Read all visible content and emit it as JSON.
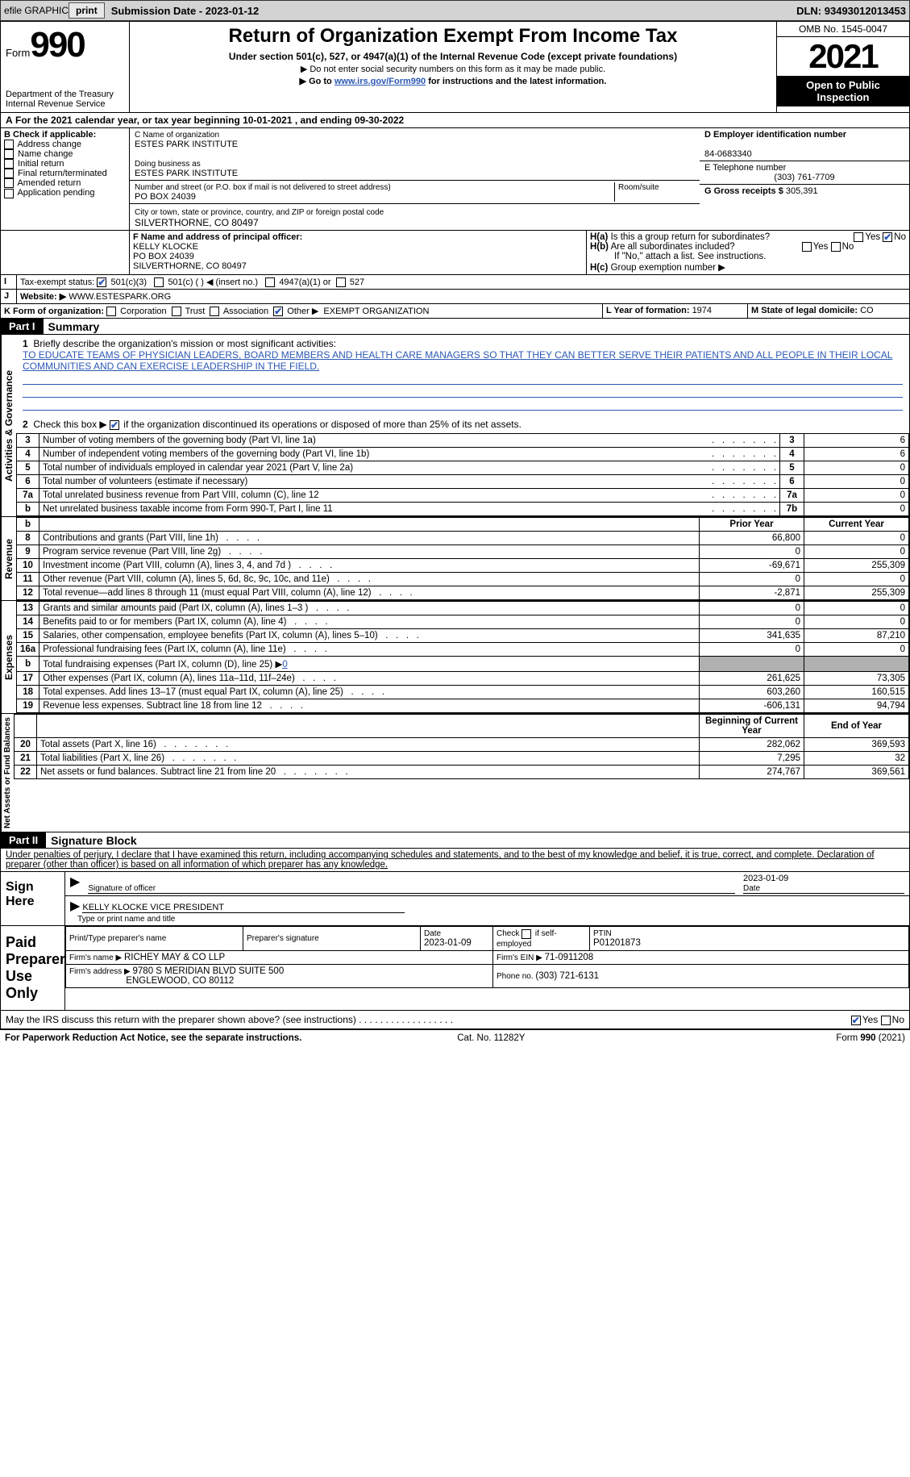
{
  "topbar": {
    "efile": "efile GRAPHIC",
    "print": "print",
    "subdate_label": "Submission Date - ",
    "subdate": "2023-01-12",
    "dln_label": "DLN: ",
    "dln": "93493012013453"
  },
  "header": {
    "form_label": "Form",
    "form_number": "990",
    "dept": "Department of the Treasury",
    "irs": "Internal Revenue Service",
    "title": "Return of Organization Exempt From Income Tax",
    "subtitle": "Under section 501(c), 527, or 4947(a)(1) of the Internal Revenue Code (except private foundations)",
    "note1": "▶ Do not enter social security numbers on this form as it may be made public.",
    "note2_prefix": "▶ Go to ",
    "note2_link": "www.irs.gov/Form990",
    "note2_suffix": " for instructions and the latest information.",
    "omb": "OMB No. 1545-0047",
    "year": "2021",
    "inspect": "Open to Public Inspection"
  },
  "line_a": "For the 2021 calendar year, or tax year beginning 10-01-2021   , and ending 09-30-2022",
  "section_b": {
    "title": "B Check if applicable:",
    "items": [
      "Address change",
      "Name change",
      "Initial return",
      "Final return/terminated",
      "Amended return",
      "Application pending"
    ]
  },
  "section_c": {
    "name_label": "C Name of organization",
    "name": "ESTES PARK INSTITUTE",
    "dba_label": "Doing business as",
    "dba": "ESTES PARK INSTITUTE",
    "street_label": "Number and street (or P.O. box if mail is not delivered to street address)",
    "street": "PO BOX 24039",
    "room_label": "Room/suite",
    "city_label": "City or town, state or province, country, and ZIP or foreign postal code",
    "city": "SILVERTHORNE, CO  80497"
  },
  "section_d": {
    "ein_label": "D Employer identification number",
    "ein": "84-0683340",
    "phone_label": "E Telephone number",
    "phone": "(303) 761-7709",
    "gross_label": "G Gross receipts $ ",
    "gross": "305,391"
  },
  "section_f": {
    "label": "F Name and address of principal officer:",
    "name": "KELLY KLOCKE",
    "street": "PO BOX 24039",
    "city": "SILVERTHORNE, CO  80497"
  },
  "section_h": {
    "ha": "Is this a group return for subordinates?",
    "hb": "Are all subordinates included?",
    "hb_note": "If \"No,\" attach a list. See instructions.",
    "hc": "Group exemption number ▶"
  },
  "line_i": {
    "label": "Tax-exempt status:",
    "opt1": "501(c)(3)",
    "opt2": "501(c) (  ) ◀ (insert no.)",
    "opt3": "4947(a)(1) or",
    "opt4": "527"
  },
  "line_j": {
    "label": "Website: ▶",
    "value": "WWW.ESTESPARK.ORG"
  },
  "line_k": {
    "label": "K Form of organization:",
    "opts": [
      "Corporation",
      "Trust",
      "Association",
      "Other ▶"
    ],
    "other_value": "EXEMPT ORGANIZATION",
    "l_label": "L Year of formation: ",
    "l_value": "1974",
    "m_label": "M State of legal domicile: ",
    "m_value": "CO"
  },
  "part1": {
    "bar": "Part I",
    "title": "Summary",
    "line1_label": "Briefly describe the organization's mission or most significant activities:",
    "line1_text": "TO EDUCATE TEAMS OF PHYSICIAN LEADERS, BOARD MEMBERS AND HEALTH CARE MANAGERS SO THAT THEY CAN BETTER SERVE THEIR PATIENTS AND ALL PEOPLE IN THEIR LOCAL COMMUNITIES AND CAN EXERCISE LEADERSHIP IN THE FIELD.",
    "line2": "Check this box ▶       if the organization discontinued its operations or disposed of more than 25% of its net assets.",
    "side_ag": "Activities & Governance",
    "side_rev": "Revenue",
    "side_exp": "Expenses",
    "side_net": "Net Assets or Fund Balances",
    "rows_ag": [
      {
        "n": "3",
        "t": "Number of voting members of the governing body (Part VI, line 1a)",
        "box": "3",
        "v": "6"
      },
      {
        "n": "4",
        "t": "Number of independent voting members of the governing body (Part VI, line 1b)",
        "box": "4",
        "v": "6"
      },
      {
        "n": "5",
        "t": "Total number of individuals employed in calendar year 2021 (Part V, line 2a)",
        "box": "5",
        "v": "0"
      },
      {
        "n": "6",
        "t": "Total number of volunteers (estimate if necessary)",
        "box": "6",
        "v": "0"
      },
      {
        "n": "7a",
        "t": "Total unrelated business revenue from Part VIII, column (C), line 12",
        "box": "7a",
        "v": "0"
      },
      {
        "n": "b",
        "t": "Net unrelated business taxable income from Form 990-T, Part I, line 11",
        "box": "7b",
        "v": "0"
      }
    ],
    "col_prior": "Prior Year",
    "col_current": "Current Year",
    "rows_rev": [
      {
        "n": "8",
        "t": "Contributions and grants (Part VIII, line 1h)",
        "p": "66,800",
        "c": "0"
      },
      {
        "n": "9",
        "t": "Program service revenue (Part VIII, line 2g)",
        "p": "0",
        "c": "0"
      },
      {
        "n": "10",
        "t": "Investment income (Part VIII, column (A), lines 3, 4, and 7d )",
        "p": "-69,671",
        "c": "255,309"
      },
      {
        "n": "11",
        "t": "Other revenue (Part VIII, column (A), lines 5, 6d, 8c, 9c, 10c, and 11e)",
        "p": "0",
        "c": "0"
      },
      {
        "n": "12",
        "t": "Total revenue—add lines 8 through 11 (must equal Part VIII, column (A), line 12)",
        "p": "-2,871",
        "c": "255,309"
      }
    ],
    "rows_exp": [
      {
        "n": "13",
        "t": "Grants and similar amounts paid (Part IX, column (A), lines 1–3 )",
        "p": "0",
        "c": "0"
      },
      {
        "n": "14",
        "t": "Benefits paid to or for members (Part IX, column (A), line 4)",
        "p": "0",
        "c": "0"
      },
      {
        "n": "15",
        "t": "Salaries, other compensation, employee benefits (Part IX, column (A), lines 5–10)",
        "p": "341,635",
        "c": "87,210"
      },
      {
        "n": "16a",
        "t": "Professional fundraising fees (Part IX, column (A), line 11e)",
        "p": "0",
        "c": "0"
      },
      {
        "n": "b",
        "t": "Total fundraising expenses (Part IX, column (D), line 25) ▶",
        "v": "0",
        "shaded": true
      },
      {
        "n": "17",
        "t": "Other expenses (Part IX, column (A), lines 11a–11d, 11f–24e)",
        "p": "261,625",
        "c": "73,305"
      },
      {
        "n": "18",
        "t": "Total expenses. Add lines 13–17 (must equal Part IX, column (A), line 25)",
        "p": "603,260",
        "c": "160,515"
      },
      {
        "n": "19",
        "t": "Revenue less expenses. Subtract line 18 from line 12",
        "p": "-606,131",
        "c": "94,794"
      }
    ],
    "col_begin": "Beginning of Current Year",
    "col_end": "End of Year",
    "rows_net": [
      {
        "n": "20",
        "t": "Total assets (Part X, line 16)",
        "p": "282,062",
        "c": "369,593"
      },
      {
        "n": "21",
        "t": "Total liabilities (Part X, line 26)",
        "p": "7,295",
        "c": "32"
      },
      {
        "n": "22",
        "t": "Net assets or fund balances. Subtract line 21 from line 20",
        "p": "274,767",
        "c": "369,561"
      }
    ]
  },
  "part2": {
    "bar": "Part II",
    "title": "Signature Block",
    "decl": "Under penalties of perjury, I declare that I have examined this return, including accompanying schedules and statements, and to the best of my knowledge and belief, it is true, correct, and complete. Declaration of preparer (other than officer) is based on all information of which preparer has any knowledge.",
    "sign_here": "Sign Here",
    "sig_officer": "Signature of officer",
    "sig_date": "2023-01-09",
    "date_label": "Date",
    "officer_name": "KELLY KLOCKE  VICE PRESIDENT",
    "type_name": "Type or print name and title",
    "paid": "Paid Preparer Use Only",
    "prep_name_label": "Print/Type preparer's name",
    "prep_sig_label": "Preparer's signature",
    "prep_date_label": "Date",
    "prep_date": "2023-01-09",
    "check_self": "Check        if self-employed",
    "ptin_label": "PTIN",
    "ptin": "P01201873",
    "firm_name_label": "Firm's name    ▶ ",
    "firm_name": "RICHEY MAY & CO LLP",
    "firm_ein_label": "Firm's EIN ▶ ",
    "firm_ein": "71-0911208",
    "firm_addr_label": "Firm's address ▶ ",
    "firm_addr1": "9780 S MERIDIAN BLVD SUITE 500",
    "firm_addr2": "ENGLEWOOD, CO  80112",
    "firm_phone_label": "Phone no. ",
    "firm_phone": "(303) 721-6131",
    "discuss": "May the IRS discuss this return with the preparer shown above? (see instructions)"
  },
  "footer": {
    "left": "For Paperwork Reduction Act Notice, see the separate instructions.",
    "mid": "Cat. No. 11282Y",
    "right": "Form 990 (2021)"
  }
}
